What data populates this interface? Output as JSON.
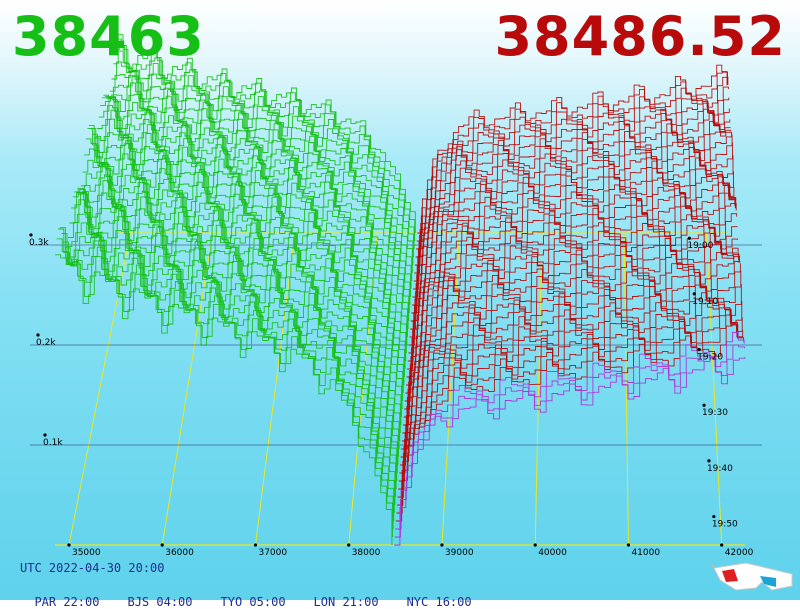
{
  "header": {
    "bid_price": "38463",
    "ask_price": "38486.52",
    "bid_color": "#16bf16",
    "ask_color": "#b80a0a"
  },
  "footer": {
    "utc": "UTC 2022-04-30 20:00",
    "timezones": [
      "PAR 22:00",
      "BJS 04:00",
      "TYO 05:00",
      "LON 21:00",
      "NYC 16:00"
    ]
  },
  "glasses_icon": "3d-glasses-icon",
  "chart_data": {
    "type": "area",
    "title": "",
    "xlabel": "",
    "ylabel": "",
    "x_ticks": [
      "35000",
      "36000",
      "37000",
      "38000",
      "39000",
      "40000",
      "41000",
      "42000"
    ],
    "x_range": [
      34850,
      42250
    ],
    "depth_ticks": [
      "0.1k",
      "0.2k",
      "0.3k"
    ],
    "depth_range": [
      0,
      300
    ],
    "time_ticks": [
      "19:00",
      "19:10",
      "19:20",
      "19:30",
      "19:40",
      "19:50"
    ],
    "grid": true,
    "series": [
      {
        "side": "bid",
        "color": "#16bf16",
        "prices": [
          34850,
          35200,
          35600,
          36000,
          36500,
          37000,
          37500,
          37800,
          38000,
          38200,
          38400,
          38463
        ],
        "cumulative_depth": [
          300,
          285,
          268,
          252,
          235,
          218,
          196,
          170,
          140,
          96,
          38,
          0
        ]
      },
      {
        "side": "ask",
        "color": "#b80a0a",
        "prices": [
          38486.52,
          38550,
          38700,
          38900,
          39000,
          39500,
          40000,
          40500,
          41000,
          41500,
          42000,
          42250
        ],
        "cumulative_depth": [
          0,
          38,
          80,
          108,
          118,
          126,
          132,
          138,
          145,
          152,
          162,
          168
        ]
      }
    ]
  }
}
